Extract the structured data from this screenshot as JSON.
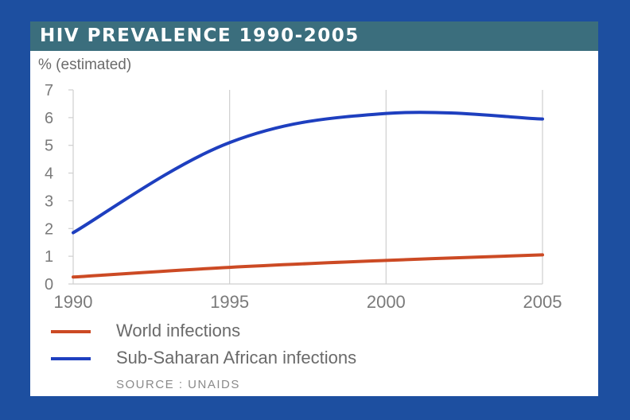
{
  "header": {
    "title": "HIV PREVALENCE 1990-2005"
  },
  "colors": {
    "background": "#1d4fa0",
    "header": "#3b6e7d",
    "world": "#cc4a24",
    "africa": "#1e3fbf",
    "grid": "#cfcfcf"
  },
  "chart_data": {
    "type": "line",
    "title": "HIV PREVALENCE 1990-2005",
    "ylabel": "% (estimated)",
    "xlabel": "",
    "x": [
      1990,
      1995,
      2000,
      2005
    ],
    "xticks": [
      "1990",
      "1995",
      "2000",
      "2005"
    ],
    "yticks": [
      "0",
      "1",
      "2",
      "3",
      "4",
      "5",
      "6",
      "7"
    ],
    "ylim": [
      0,
      7
    ],
    "xlim": [
      1990,
      2005
    ],
    "series": [
      {
        "name": "World infections",
        "color": "#cc4a24",
        "values": [
          0.25,
          0.6,
          0.85,
          1.05
        ]
      },
      {
        "name": "Sub-Saharan African infections",
        "color": "#1e3fbf",
        "values": [
          1.85,
          5.1,
          6.15,
          5.95
        ]
      }
    ],
    "source": "SOURCE : UNAIDS"
  }
}
